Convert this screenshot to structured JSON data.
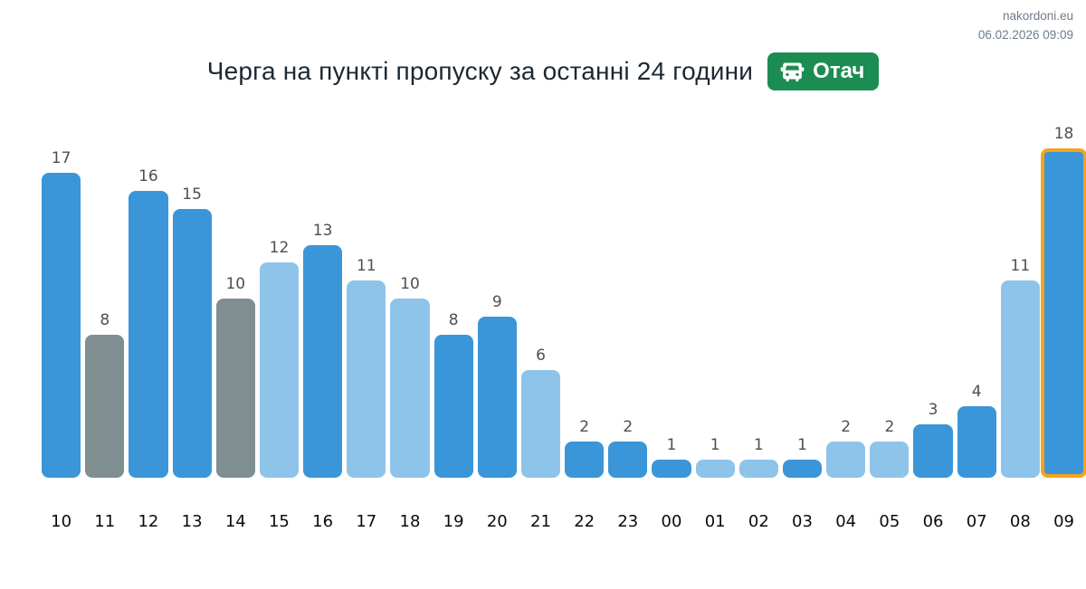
{
  "header": {
    "site_link": "nakordoni.eu",
    "timestamp": "06.02.2026 09:09",
    "title": "Черга на пункті пропуску за останні 24 години",
    "checkpoint_badge": {
      "label": "Отач",
      "icon": "car-icon",
      "color": "#1d8c52"
    }
  },
  "chart_data": {
    "type": "bar",
    "title": "Черга на пункті пропуску за останні 24 години",
    "xlabel": "",
    "ylabel": "",
    "categories": [
      "10",
      "11",
      "12",
      "13",
      "14",
      "15",
      "16",
      "17",
      "18",
      "19",
      "20",
      "21",
      "22",
      "23",
      "00",
      "01",
      "02",
      "03",
      "04",
      "05",
      "06",
      "07",
      "08",
      "09"
    ],
    "values": [
      17,
      8,
      16,
      15,
      10,
      12,
      13,
      11,
      10,
      8,
      9,
      6,
      2,
      2,
      1,
      1,
      1,
      1,
      2,
      2,
      3,
      4,
      11,
      18
    ],
    "bar_styles": [
      "dark",
      "gray",
      "dark",
      "dark",
      "gray",
      "light",
      "dark",
      "light",
      "light",
      "dark",
      "dark",
      "light",
      "dark",
      "dark",
      "dark",
      "light",
      "light",
      "dark",
      "light",
      "light",
      "dark",
      "dark",
      "light",
      "dark"
    ],
    "palette": {
      "dark": "#3a96d8",
      "light": "#8ec4ea",
      "gray": "#7f8e91"
    },
    "highlighted_index": 23,
    "highlight_border_color": "#f7a21b",
    "ylim": [
      0,
      18
    ],
    "grid": false,
    "value_labels": true,
    "legend": "none"
  }
}
